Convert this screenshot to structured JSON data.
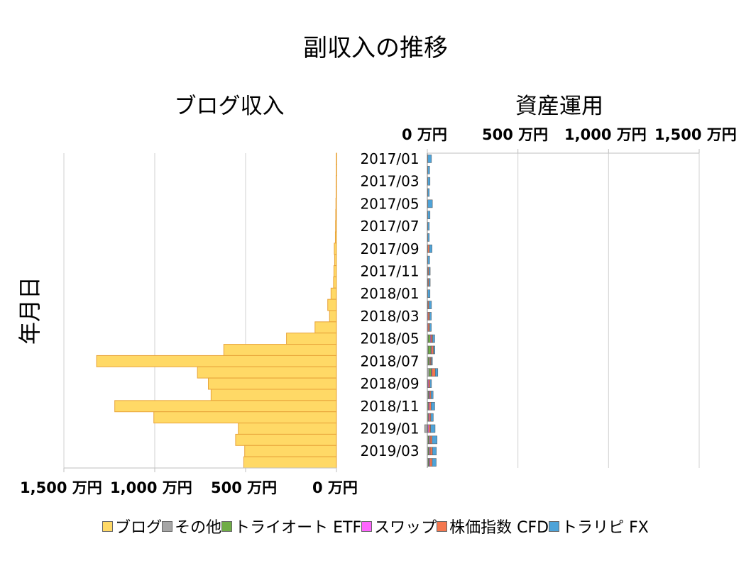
{
  "title": "副収入の推移",
  "left_panel_title": "ブログ収入",
  "right_panel_title": "資産運用",
  "y_axis_title": "年月日",
  "left_ticks": [
    "1,500 万円",
    "1,000 万円",
    "500 万円",
    "0 万円"
  ],
  "right_ticks": [
    "0 万円",
    "500 万円",
    "1,000 万円",
    "1,500 万円"
  ],
  "legend": [
    {
      "name": "ブログ",
      "color": "#FFD966"
    },
    {
      "name": "その他",
      "color": "#A6A6A6"
    },
    {
      "name": "トライオート ETF",
      "color": "#70AD47"
    },
    {
      "name": "スワップ",
      "color": "#FF66FF"
    },
    {
      "name": "株価指数 CFD",
      "color": "#F4774F"
    },
    {
      "name": "トラリピ FX",
      "color": "#4EA3D8"
    }
  ],
  "chart_data": [
    {
      "type": "bar",
      "orientation": "horizontal",
      "title": "ブログ収入",
      "categories": [
        "2017/01",
        "2017/02",
        "2017/03",
        "2017/04",
        "2017/05",
        "2017/06",
        "2017/07",
        "2017/08",
        "2017/09",
        "2017/10",
        "2017/11",
        "2017/12",
        "2018/01",
        "2018/02",
        "2018/03",
        "2018/04",
        "2018/05",
        "2018/06",
        "2018/07",
        "2018/08",
        "2018/09",
        "2018/10",
        "2018/11",
        "2018/12",
        "2019/01",
        "2019/02",
        "2019/03",
        "2019/04"
      ],
      "category_labels_shown": [
        "2017/01",
        "2017/03",
        "2017/05",
        "2017/07",
        "2017/09",
        "2017/11",
        "2018/01",
        "2018/03",
        "2018/05",
        "2018/07",
        "2018/09",
        "2018/11",
        "2019/01",
        "2019/03"
      ],
      "series": [
        {
          "name": "ブログ",
          "values": [
            1,
            1,
            2,
            2,
            3,
            4,
            5,
            6,
            12,
            10,
            14,
            16,
            30,
            48,
            38,
            118,
            275,
            620,
            1320,
            765,
            705,
            690,
            1220,
            1005,
            540,
            555,
            505,
            510
          ]
        }
      ],
      "xlim": [
        1500,
        0
      ],
      "x_reversed": true,
      "x_ticks": [
        1500,
        1000,
        500,
        0
      ],
      "unit": "万円",
      "grid": true
    },
    {
      "type": "bar",
      "orientation": "horizontal",
      "stacked": true,
      "title": "資産運用",
      "categories": [
        "2017/01",
        "2017/02",
        "2017/03",
        "2017/04",
        "2017/05",
        "2017/06",
        "2017/07",
        "2017/08",
        "2017/09",
        "2017/10",
        "2017/11",
        "2017/12",
        "2018/01",
        "2018/02",
        "2018/03",
        "2018/04",
        "2018/05",
        "2018/06",
        "2018/07",
        "2018/08",
        "2018/09",
        "2018/10",
        "2018/11",
        "2018/12",
        "2019/01",
        "2019/02",
        "2019/03",
        "2019/04"
      ],
      "series": [
        {
          "name": "その他",
          "values": [
            0,
            0,
            0,
            0,
            0,
            0,
            0,
            0,
            0,
            0,
            0,
            0,
            0,
            0,
            0,
            0,
            5,
            5,
            5,
            10,
            0,
            5,
            0,
            0,
            -15,
            5,
            5,
            5
          ]
        },
        {
          "name": "トライオート ETF",
          "values": [
            0,
            0,
            0,
            0,
            0,
            0,
            0,
            0,
            0,
            0,
            0,
            0,
            0,
            0,
            0,
            0,
            12,
            15,
            8,
            12,
            3,
            4,
            6,
            6,
            3,
            6,
            6,
            5
          ]
        },
        {
          "name": "スワップ",
          "values": [
            3,
            3,
            3,
            3,
            3,
            3,
            3,
            3,
            3,
            3,
            3,
            3,
            3,
            3,
            4,
            4,
            4,
            4,
            4,
            4,
            4,
            5,
            5,
            5,
            5,
            5,
            5,
            5
          ]
        },
        {
          "name": "株価指数 CFD",
          "values": [
            0,
            0,
            0,
            0,
            0,
            0,
            0,
            0,
            8,
            0,
            5,
            5,
            0,
            5,
            8,
            8,
            8,
            10,
            5,
            18,
            8,
            6,
            10,
            8,
            10,
            10,
            12,
            12
          ]
        },
        {
          "name": "トラリピ FX",
          "values": [
            20,
            10,
            12,
            8,
            25,
            12,
            8,
            8,
            15,
            10,
            8,
            8,
            12,
            15,
            10,
            10,
            12,
            8,
            6,
            14,
            8,
            12,
            20,
            14,
            25,
            28,
            22,
            22
          ]
        }
      ],
      "xlim": [
        0,
        1500
      ],
      "x_ticks": [
        0,
        500,
        1000,
        1500
      ],
      "unit": "万円",
      "grid": true
    }
  ]
}
